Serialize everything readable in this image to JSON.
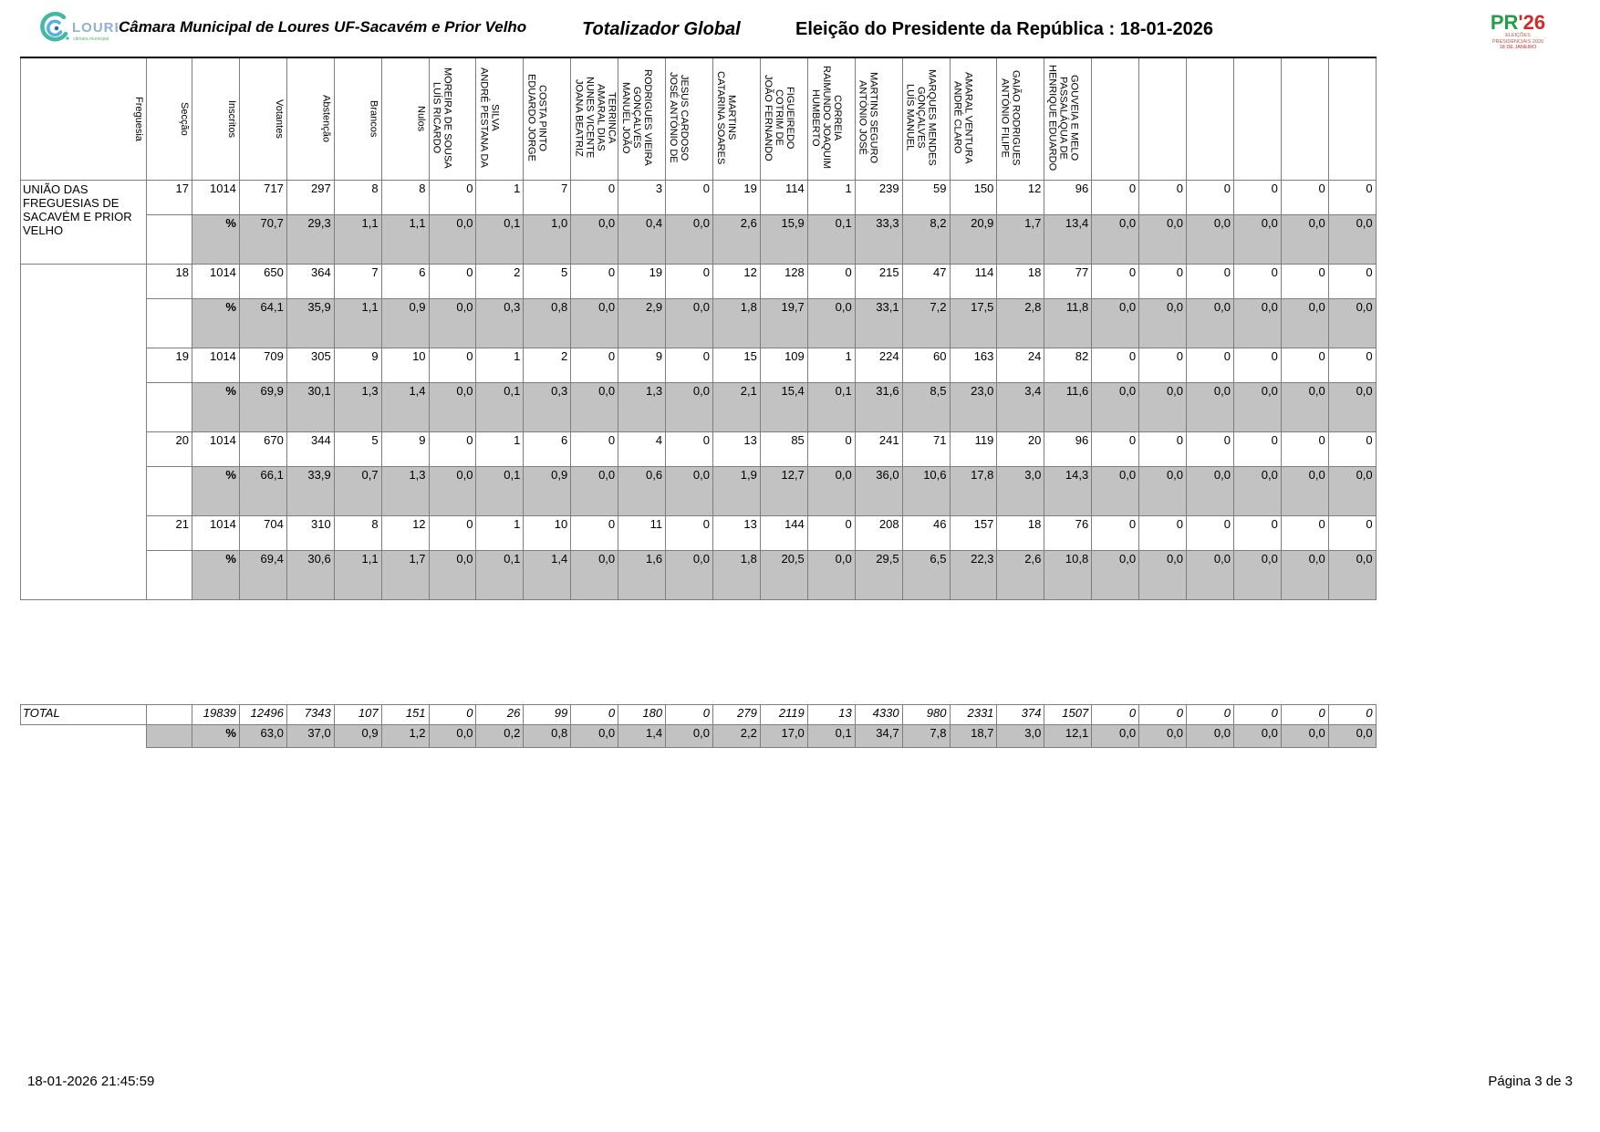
{
  "header": {
    "municipality": "Câmara Municipal de Loures UF-Sacavém e Prior Velho",
    "report_title": "Totalizador Global",
    "election_title": "Eleição do Presidente da República : 18-01-2026",
    "logo": {
      "text": "LOURES",
      "subtext": "câmara municipal"
    },
    "pr26": {
      "pr": "PR",
      "apostrophe": "'",
      "year": "26",
      "line1": "ELEIÇÕES",
      "line2": "PRESIDENCIAIS 2026",
      "line3": "18 DE JANEIRO"
    }
  },
  "table": {
    "columns": [
      "Freguesia",
      "Secção",
      "Inscritos",
      "Votantes",
      "Abstenção",
      "Brancos",
      "Nulos",
      "LUÍS RICARDO MOREIRA DE SOUSA",
      "ANDRÉ PESTANA DA SILVA",
      "EDUARDO JORGE COSTA PINTO",
      "JOANA BEATRIZ NUNES VICENTE AMARAL DIAS TERRINCA",
      "MANUEL JOÃO GONÇALVES RODRIGUES VIEIRA",
      "JOSÉ ANTÓNIO DE JESUS CARDOSO",
      "CATARINA SOARES MARTINS",
      "JOÃO FERNANDO COTRIM DE FIGUEIREDO",
      "HUMBERTO RAIMUNDO JOAQUIM CORREIA",
      "ANTÓNIO JOSÉ MARTINS SEGURO",
      "LUÍS MANUEL GONÇALVES MARQUES MENDES",
      "ANDRÉ CLARO AMARAL VENTURA",
      "ANTÓNIO FILIPE GAIÃO RODRIGUES",
      "HENRIQUE EDUARDO PASSALÁQUA DE GOUVEIA E MELO",
      "",
      "",
      "",
      "",
      "",
      ""
    ],
    "sections": [
      {
        "freguesia": "UNIÃO DAS FREGUESIAS DE SACAVÉM E PRIOR VELHO",
        "seccao": "17",
        "values": [
          "1014",
          "717",
          "297",
          "8",
          "8",
          "0",
          "1",
          "7",
          "0",
          "3",
          "0",
          "19",
          "114",
          "1",
          "239",
          "59",
          "150",
          "12",
          "96",
          "0",
          "0",
          "0",
          "0",
          "0",
          "0"
        ],
        "percent": [
          "70,7",
          "29,3",
          "1,1",
          "1,1",
          "0,0",
          "0,1",
          "1,0",
          "0,0",
          "0,4",
          "0,0",
          "2,6",
          "15,9",
          "0,1",
          "33,3",
          "8,2",
          "20,9",
          "1,7",
          "13,4",
          "0,0",
          "0,0",
          "0,0",
          "0,0",
          "0,0",
          "0,0"
        ]
      },
      {
        "freguesia": "",
        "seccao": "18",
        "values": [
          "1014",
          "650",
          "364",
          "7",
          "6",
          "0",
          "2",
          "5",
          "0",
          "19",
          "0",
          "12",
          "128",
          "0",
          "215",
          "47",
          "114",
          "18",
          "77",
          "0",
          "0",
          "0",
          "0",
          "0",
          "0"
        ],
        "percent": [
          "64,1",
          "35,9",
          "1,1",
          "0,9",
          "0,0",
          "0,3",
          "0,8",
          "0,0",
          "2,9",
          "0,0",
          "1,8",
          "19,7",
          "0,0",
          "33,1",
          "7,2",
          "17,5",
          "2,8",
          "11,8",
          "0,0",
          "0,0",
          "0,0",
          "0,0",
          "0,0",
          "0,0"
        ]
      },
      {
        "seccao": "19",
        "values": [
          "1014",
          "709",
          "305",
          "9",
          "10",
          "0",
          "1",
          "2",
          "0",
          "9",
          "0",
          "15",
          "109",
          "1",
          "224",
          "60",
          "163",
          "24",
          "82",
          "0",
          "0",
          "0",
          "0",
          "0",
          "0"
        ],
        "percent": [
          "69,9",
          "30,1",
          "1,3",
          "1,4",
          "0,0",
          "0,1",
          "0,3",
          "0,0",
          "1,3",
          "0,0",
          "2,1",
          "15,4",
          "0,1",
          "31,6",
          "8,5",
          "23,0",
          "3,4",
          "11,6",
          "0,0",
          "0,0",
          "0,0",
          "0,0",
          "0,0",
          "0,0"
        ]
      },
      {
        "seccao": "20",
        "values": [
          "1014",
          "670",
          "344",
          "5",
          "9",
          "0",
          "1",
          "6",
          "0",
          "4",
          "0",
          "13",
          "85",
          "0",
          "241",
          "71",
          "119",
          "20",
          "96",
          "0",
          "0",
          "0",
          "0",
          "0",
          "0"
        ],
        "percent": [
          "66,1",
          "33,9",
          "0,7",
          "1,3",
          "0,0",
          "0,1",
          "0,9",
          "0,0",
          "0,6",
          "0,0",
          "1,9",
          "12,7",
          "0,0",
          "36,0",
          "10,6",
          "17,8",
          "3,0",
          "14,3",
          "0,0",
          "0,0",
          "0,0",
          "0,0",
          "0,0",
          "0,0"
        ]
      },
      {
        "seccao": "21",
        "values": [
          "1014",
          "704",
          "310",
          "8",
          "12",
          "0",
          "1",
          "10",
          "0",
          "11",
          "0",
          "13",
          "144",
          "0",
          "208",
          "46",
          "157",
          "18",
          "76",
          "0",
          "0",
          "0",
          "0",
          "0",
          "0"
        ],
        "percent": [
          "69,4",
          "30,6",
          "1,1",
          "1,7",
          "0,0",
          "0,1",
          "1,4",
          "0,0",
          "1,6",
          "0,0",
          "1,8",
          "20,5",
          "0,0",
          "29,5",
          "6,5",
          "22,3",
          "2,6",
          "10,8",
          "0,0",
          "0,0",
          "0,0",
          "0,0",
          "0,0",
          "0,0"
        ]
      }
    ],
    "total": {
      "label": "TOTAL",
      "values": [
        "19839",
        "12496",
        "7343",
        "107",
        "151",
        "0",
        "26",
        "99",
        "0",
        "180",
        "0",
        "279",
        "2119",
        "13",
        "4330",
        "980",
        "2331",
        "374",
        "1507",
        "0",
        "0",
        "0",
        "0",
        "0",
        "0"
      ],
      "percent": [
        "63,0",
        "37,0",
        "0,9",
        "1,2",
        "0,0",
        "0,2",
        "0,8",
        "0,0",
        "1,4",
        "0,0",
        "2,2",
        "17,0",
        "0,1",
        "34,7",
        "7,8",
        "18,7",
        "3,0",
        "12,1",
        "0,0",
        "0,0",
        "0,0",
        "0,0",
        "0,0",
        "0,0"
      ]
    },
    "percent_symbol": "%"
  },
  "footer": {
    "timestamp": "18-01-2026 21:45:59",
    "page": "Página 3 de 3"
  }
}
